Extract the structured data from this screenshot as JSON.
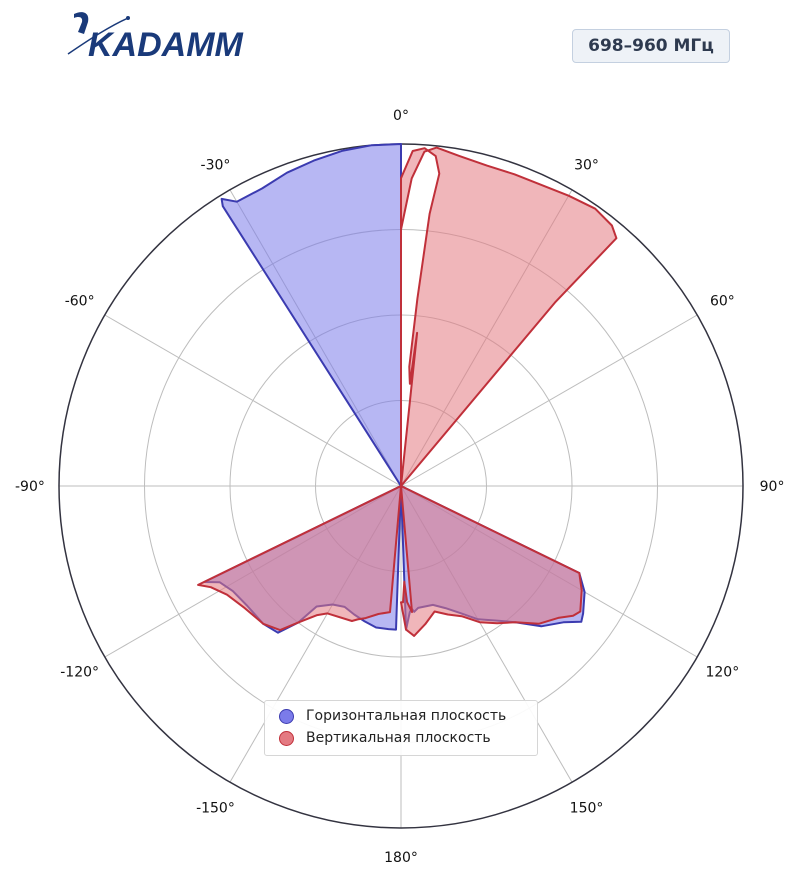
{
  "header": {
    "logo_text": "KADAMM",
    "frequency_badge": "698–960 МГц"
  },
  "colors": {
    "horizontal_fill": "#7b7bea",
    "horizontal_stroke": "#3b3bb0",
    "vertical_fill": "#e47a82",
    "vertical_stroke": "#c0303a",
    "logo": "#1a3a7a"
  },
  "chart_data": {
    "type": "polar-area",
    "angle_labels": [
      "0°",
      "30°",
      "60°",
      "90°",
      "120°",
      "150°",
      "180°",
      "-150°",
      "-120°",
      "-90°",
      "-60°",
      "-30°"
    ],
    "angle_direction": "clockwise",
    "zero_location": "top",
    "r_range": [
      0,
      1
    ],
    "r_grid": [
      0.25,
      0.5,
      0.75
    ],
    "grid": true,
    "legend_position": "bottom-center",
    "series": [
      {
        "name": "Горизонтальная плоскость",
        "color": "#7b7bea",
        "points": [
          [
            0,
            0
          ],
          [
            0,
            1.0
          ],
          [
            -5,
            1.0
          ],
          [
            -10,
            0.995
          ],
          [
            -15,
            0.985
          ],
          [
            -20,
            0.975
          ],
          [
            -25,
            0.96
          ],
          [
            -30,
            0.96
          ],
          [
            -32,
            0.99
          ],
          [
            -32.5,
            0.97
          ],
          [
            -31.5,
            0
          ],
          [
            -115,
            0
          ],
          [
            -116,
            0.64
          ],
          [
            -118,
            0.6
          ],
          [
            -122,
            0.58
          ],
          [
            -128,
            0.57
          ],
          [
            -135,
            0.57
          ],
          [
            -140,
            0.56
          ],
          [
            -143,
            0.5
          ],
          [
            -145,
            0.43
          ],
          [
            -150,
            0.4
          ],
          [
            -155,
            0.39
          ],
          [
            -160,
            0.4
          ],
          [
            -165,
            0.41
          ],
          [
            -170,
            0.42
          ],
          [
            -175,
            0.42
          ],
          [
            -178,
            0.42
          ],
          [
            0,
            0
          ],
          [
            178,
            0.42
          ],
          [
            176,
            0.37
          ],
          [
            175,
            0.36
          ],
          [
            174,
            0.37
          ],
          [
            172,
            0.36
          ],
          [
            165,
            0.36
          ],
          [
            160,
            0.38
          ],
          [
            155,
            0.41
          ],
          [
            150,
            0.45
          ],
          [
            145,
            0.48
          ],
          [
            140,
            0.52
          ],
          [
            135,
            0.58
          ],
          [
            130,
            0.62
          ],
          [
            127,
            0.66
          ],
          [
            125,
            0.65
          ],
          [
            120,
            0.62
          ],
          [
            116,
            0.58
          ],
          [
            115,
            0
          ]
        ]
      },
      {
        "name": "Вертикальная плоскость",
        "color": "#e47a82",
        "points": [
          [
            0,
            0
          ],
          [
            0,
            0.75
          ],
          [
            2,
            0.9
          ],
          [
            4,
            0.98
          ],
          [
            6,
            0.995
          ],
          [
            10,
            0.98
          ],
          [
            15,
            0.97
          ],
          [
            20,
            0.97
          ],
          [
            30,
            0.98
          ],
          [
            35,
            0.99
          ],
          [
            39,
            0.98
          ],
          [
            41,
            0.96
          ],
          [
            40,
            0.7
          ],
          [
            38,
            0
          ],
          [
            6,
            0
          ],
          [
            6,
            0.45
          ],
          [
            5,
            0.3
          ],
          [
            4.5,
            0.32
          ],
          [
            4,
            0.35
          ],
          [
            5,
            0.55
          ],
          [
            6,
            0.8
          ],
          [
            7,
            0.92
          ],
          [
            6,
            0.97
          ],
          [
            4,
            0.99
          ],
          [
            2,
            0.98
          ],
          [
            0,
            0.9
          ],
          [
            0,
            0
          ],
          [
            -115,
            0
          ],
          [
            -116,
            0.66
          ],
          [
            -118,
            0.63
          ],
          [
            -122,
            0.6
          ],
          [
            -128,
            0.58
          ],
          [
            -135,
            0.57
          ],
          [
            -140,
            0.55
          ],
          [
            -143,
            0.5
          ],
          [
            -147,
            0.45
          ],
          [
            -150,
            0.43
          ],
          [
            -160,
            0.42
          ],
          [
            -162,
            0.41
          ],
          [
            -165,
            0.4
          ],
          [
            -170,
            0.38
          ],
          [
            -175,
            0.37
          ],
          [
            0,
            0
          ],
          [
            175,
            0.37
          ],
          [
            177,
            0.34
          ],
          [
            178,
            0.28
          ],
          [
            179,
            0.34
          ],
          [
            180,
            0.34
          ],
          [
            178,
            0.42
          ],
          [
            175,
            0.44
          ],
          [
            170,
            0.41
          ],
          [
            165,
            0.38
          ],
          [
            160,
            0.4
          ],
          [
            155,
            0.42
          ],
          [
            150,
            0.46
          ],
          [
            145,
            0.49
          ],
          [
            140,
            0.52
          ],
          [
            135,
            0.57
          ],
          [
            130,
            0.6
          ],
          [
            127,
            0.63
          ],
          [
            125,
            0.64
          ],
          [
            120,
            0.61
          ],
          [
            116,
            0.58
          ],
          [
            115,
            0
          ]
        ]
      }
    ]
  }
}
